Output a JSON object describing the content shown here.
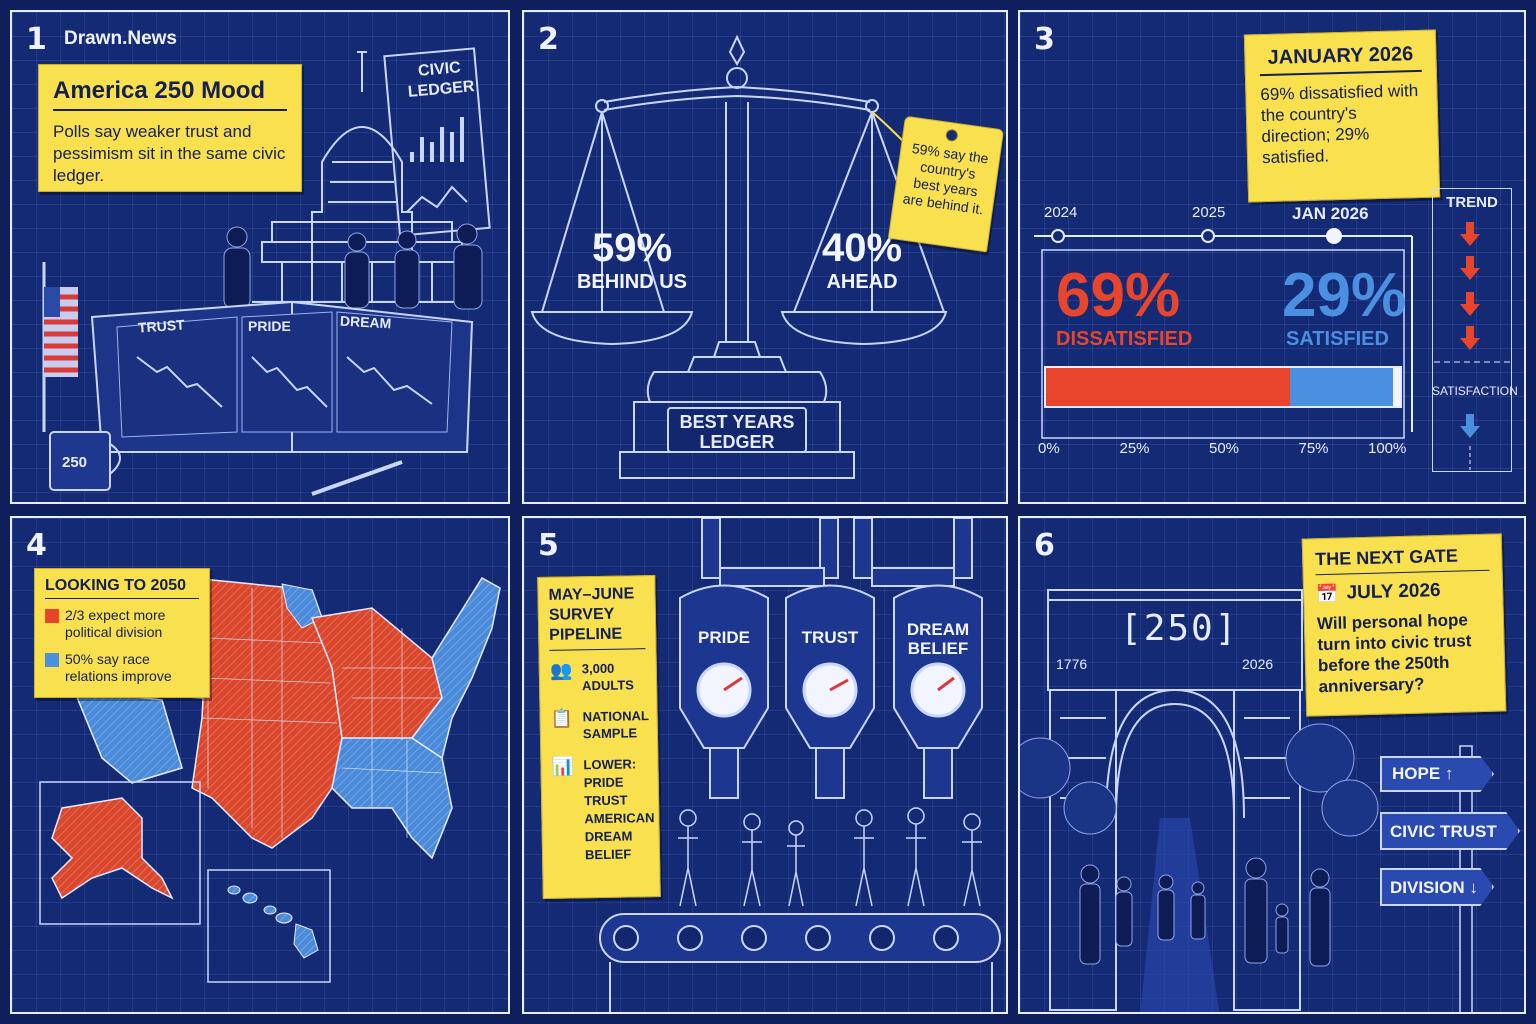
{
  "panel1": {
    "number": "1",
    "brand": "Drawn.News",
    "title": "America 250 Mood",
    "subtitle": "Polls say weaker trust and pessimism sit in the same civic ledger.",
    "board_label_1": "CIVIC",
    "board_label_2": "LEDGER",
    "book_pages": [
      "TRUST",
      "PRIDE",
      "DREAM"
    ],
    "mug_label": "250"
  },
  "panel2": {
    "number": "2",
    "left_value": "59%",
    "left_label": "BEHIND US",
    "right_value": "40%",
    "right_label": "AHEAD",
    "tag_text": "59% say the country's best years are behind it.",
    "base_label_1": "BEST YEARS",
    "base_label_2": "LEDGER"
  },
  "panel3": {
    "number": "3",
    "note_title": "JANUARY 2026",
    "note_text": "69% dissatisfied with the country's direction; 29% satisfied.",
    "timeline": [
      "2024",
      "2025",
      "JAN 2026"
    ],
    "dissatisfied_value": "69%",
    "dissatisfied_label": "DISSATISFIED",
    "satisfied_value": "29%",
    "satisfied_label": "SATISFIED",
    "dissatisfied_fraction": 0.69,
    "satisfied_fraction": 0.29,
    "axis_ticks": [
      "0%",
      "25%",
      "50%",
      "75%",
      "100%"
    ],
    "trend_label": "TREND",
    "satisfaction_label": "SATISFACTION",
    "colors": {
      "dissatisfied": "#e8452c",
      "satisfied": "#4a8fe0"
    }
  },
  "panel4": {
    "number": "4",
    "legend_title": "LOOKING TO 2050",
    "legend_items": [
      {
        "text": "2/3 expect more political division",
        "color": "#e8452c"
      },
      {
        "text": "50% say race relations improve",
        "color": "#4a8fe0"
      }
    ]
  },
  "panel5": {
    "number": "5",
    "note_title": "MAY–JUNE SURVEY PIPELINE",
    "items": [
      {
        "icon": "people-icon",
        "text": "3,000 ADULTS"
      },
      {
        "icon": "clipboard-icon",
        "text": "NATIONAL SAMPLE"
      },
      {
        "icon": "chart-icon",
        "text": "LOWER: PRIDE TRUST AMERICAN DREAM BELIEF"
      }
    ],
    "tanks": [
      "PRIDE",
      "TRUST",
      "DREAM BELIEF"
    ]
  },
  "panel6": {
    "number": "6",
    "note_title": "THE NEXT GATE",
    "date": "JULY 2026",
    "question": "Will personal hope turn into civic trust before the 250th anniversary?",
    "arch_label": "250",
    "year_left": "1776",
    "year_right": "2026",
    "signs": [
      "HOPE ↑",
      "CIVIC TRUST →",
      "DIVISION ↓"
    ]
  }
}
